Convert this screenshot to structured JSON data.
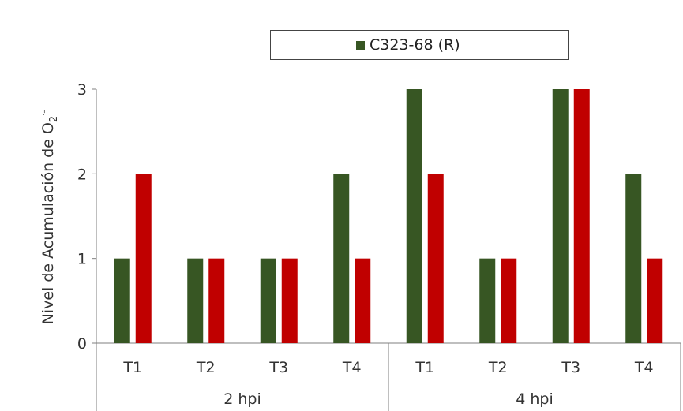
{
  "chart_data": {
    "type": "bar",
    "ylabel": "Nivel de Acumulación de O",
    "ylabel_sub": "2",
    "ylabel_sup": "·–",
    "ylim": [
      0,
      3
    ],
    "yticks": [
      "0",
      "1",
      "2",
      "3"
    ],
    "categories": [
      "T1",
      "T2",
      "T3",
      "T4",
      "T1",
      "T2",
      "T3",
      "T4"
    ],
    "groups": [
      {
        "label": "2 hpi",
        "count": 4
      },
      {
        "label": "4 hpi",
        "count": 4
      }
    ],
    "series": [
      {
        "name": "C323-68 (R)",
        "color": "#375623",
        "values": [
          1,
          1,
          1,
          2,
          3,
          1,
          3,
          2
        ]
      },
      {
        "color": "#c00000",
        "values": [
          2,
          1,
          1,
          1,
          2,
          1,
          3,
          1
        ]
      }
    ],
    "legend": {
      "position": "top",
      "entries": [
        "C323-68 (R)"
      ]
    },
    "grid": false
  }
}
